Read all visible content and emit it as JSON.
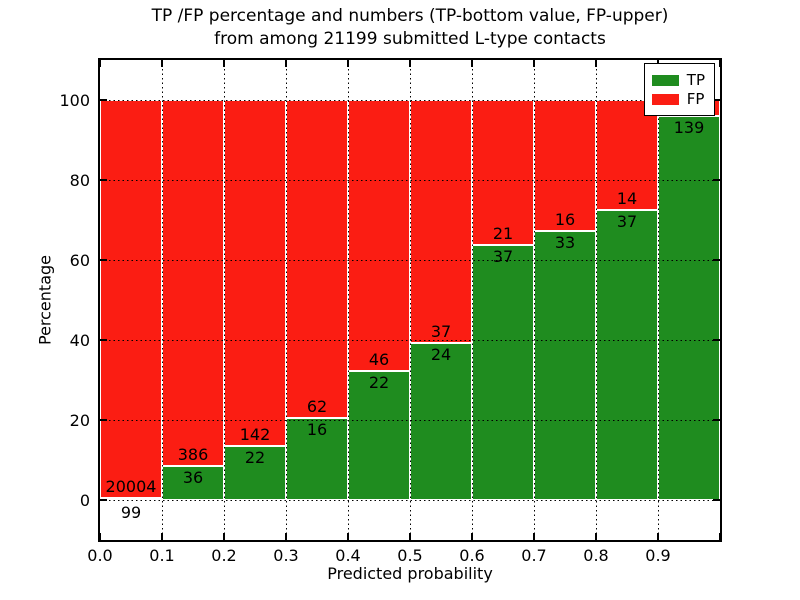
{
  "figure": {
    "title_line1": "TP /FP percentage and numbers (TP-bottom value, FP-upper)",
    "title_line2": "from among 21199 submitted L-type contacts"
  },
  "legend": {
    "entries": [
      {
        "label": "TP",
        "color": "#1f8c1f"
      },
      {
        "label": "FP",
        "color": "#fb1d13"
      }
    ]
  },
  "chart_data": {
    "type": "bar",
    "stacked": true,
    "title": "TP /FP percentage and numbers (TP-bottom value, FP-upper) from among 21199 submitted L-type contacts",
    "xlabel": "Predicted probability",
    "ylabel": "Percentage",
    "xlim": [
      0.0,
      1.0
    ],
    "ylim": [
      -10,
      110
    ],
    "x_tick_labels": [
      "0.0",
      "0.1",
      "0.2",
      "0.3",
      "0.4",
      "0.5",
      "0.6",
      "0.7",
      "0.8",
      "0.9"
    ],
    "y_tick_values": [
      0,
      20,
      40,
      60,
      80,
      100
    ],
    "grid": "dotted",
    "legend_position": "upper right",
    "total_submitted": 21199,
    "colors": {
      "tp": "#1f8c1f",
      "fp": "#fb1d13",
      "edge": "#ffffff",
      "grid": "#000000"
    },
    "bins": [
      {
        "x0": 0.0,
        "x1": 0.1,
        "tp": 99,
        "fp": 20004,
        "tp_pct": 0.49,
        "tp_label_below_axis": true
      },
      {
        "x0": 0.1,
        "x1": 0.2,
        "tp": 36,
        "fp": 386,
        "tp_pct": 8.53
      },
      {
        "x0": 0.2,
        "x1": 0.3,
        "tp": 22,
        "fp": 142,
        "tp_pct": 13.41
      },
      {
        "x0": 0.3,
        "x1": 0.4,
        "tp": 16,
        "fp": 62,
        "tp_pct": 20.51
      },
      {
        "x0": 0.4,
        "x1": 0.5,
        "tp": 22,
        "fp": 46,
        "tp_pct": 32.35
      },
      {
        "x0": 0.5,
        "x1": 0.6,
        "tp": 24,
        "fp": 37,
        "tp_pct": 39.34
      },
      {
        "x0": 0.6,
        "x1": 0.7,
        "tp": 37,
        "fp": 21,
        "tp_pct": 63.79
      },
      {
        "x0": 0.7,
        "x1": 0.8,
        "tp": 33,
        "fp": 16,
        "tp_pct": 67.35
      },
      {
        "x0": 0.8,
        "x1": 0.9,
        "tp": 37,
        "fp": 14,
        "tp_pct": 72.55
      },
      {
        "x0": 0.9,
        "x1": 1.0,
        "tp": 139,
        "fp": null,
        "tp_pct": 95.9,
        "fp_label_hidden": true
      }
    ]
  }
}
